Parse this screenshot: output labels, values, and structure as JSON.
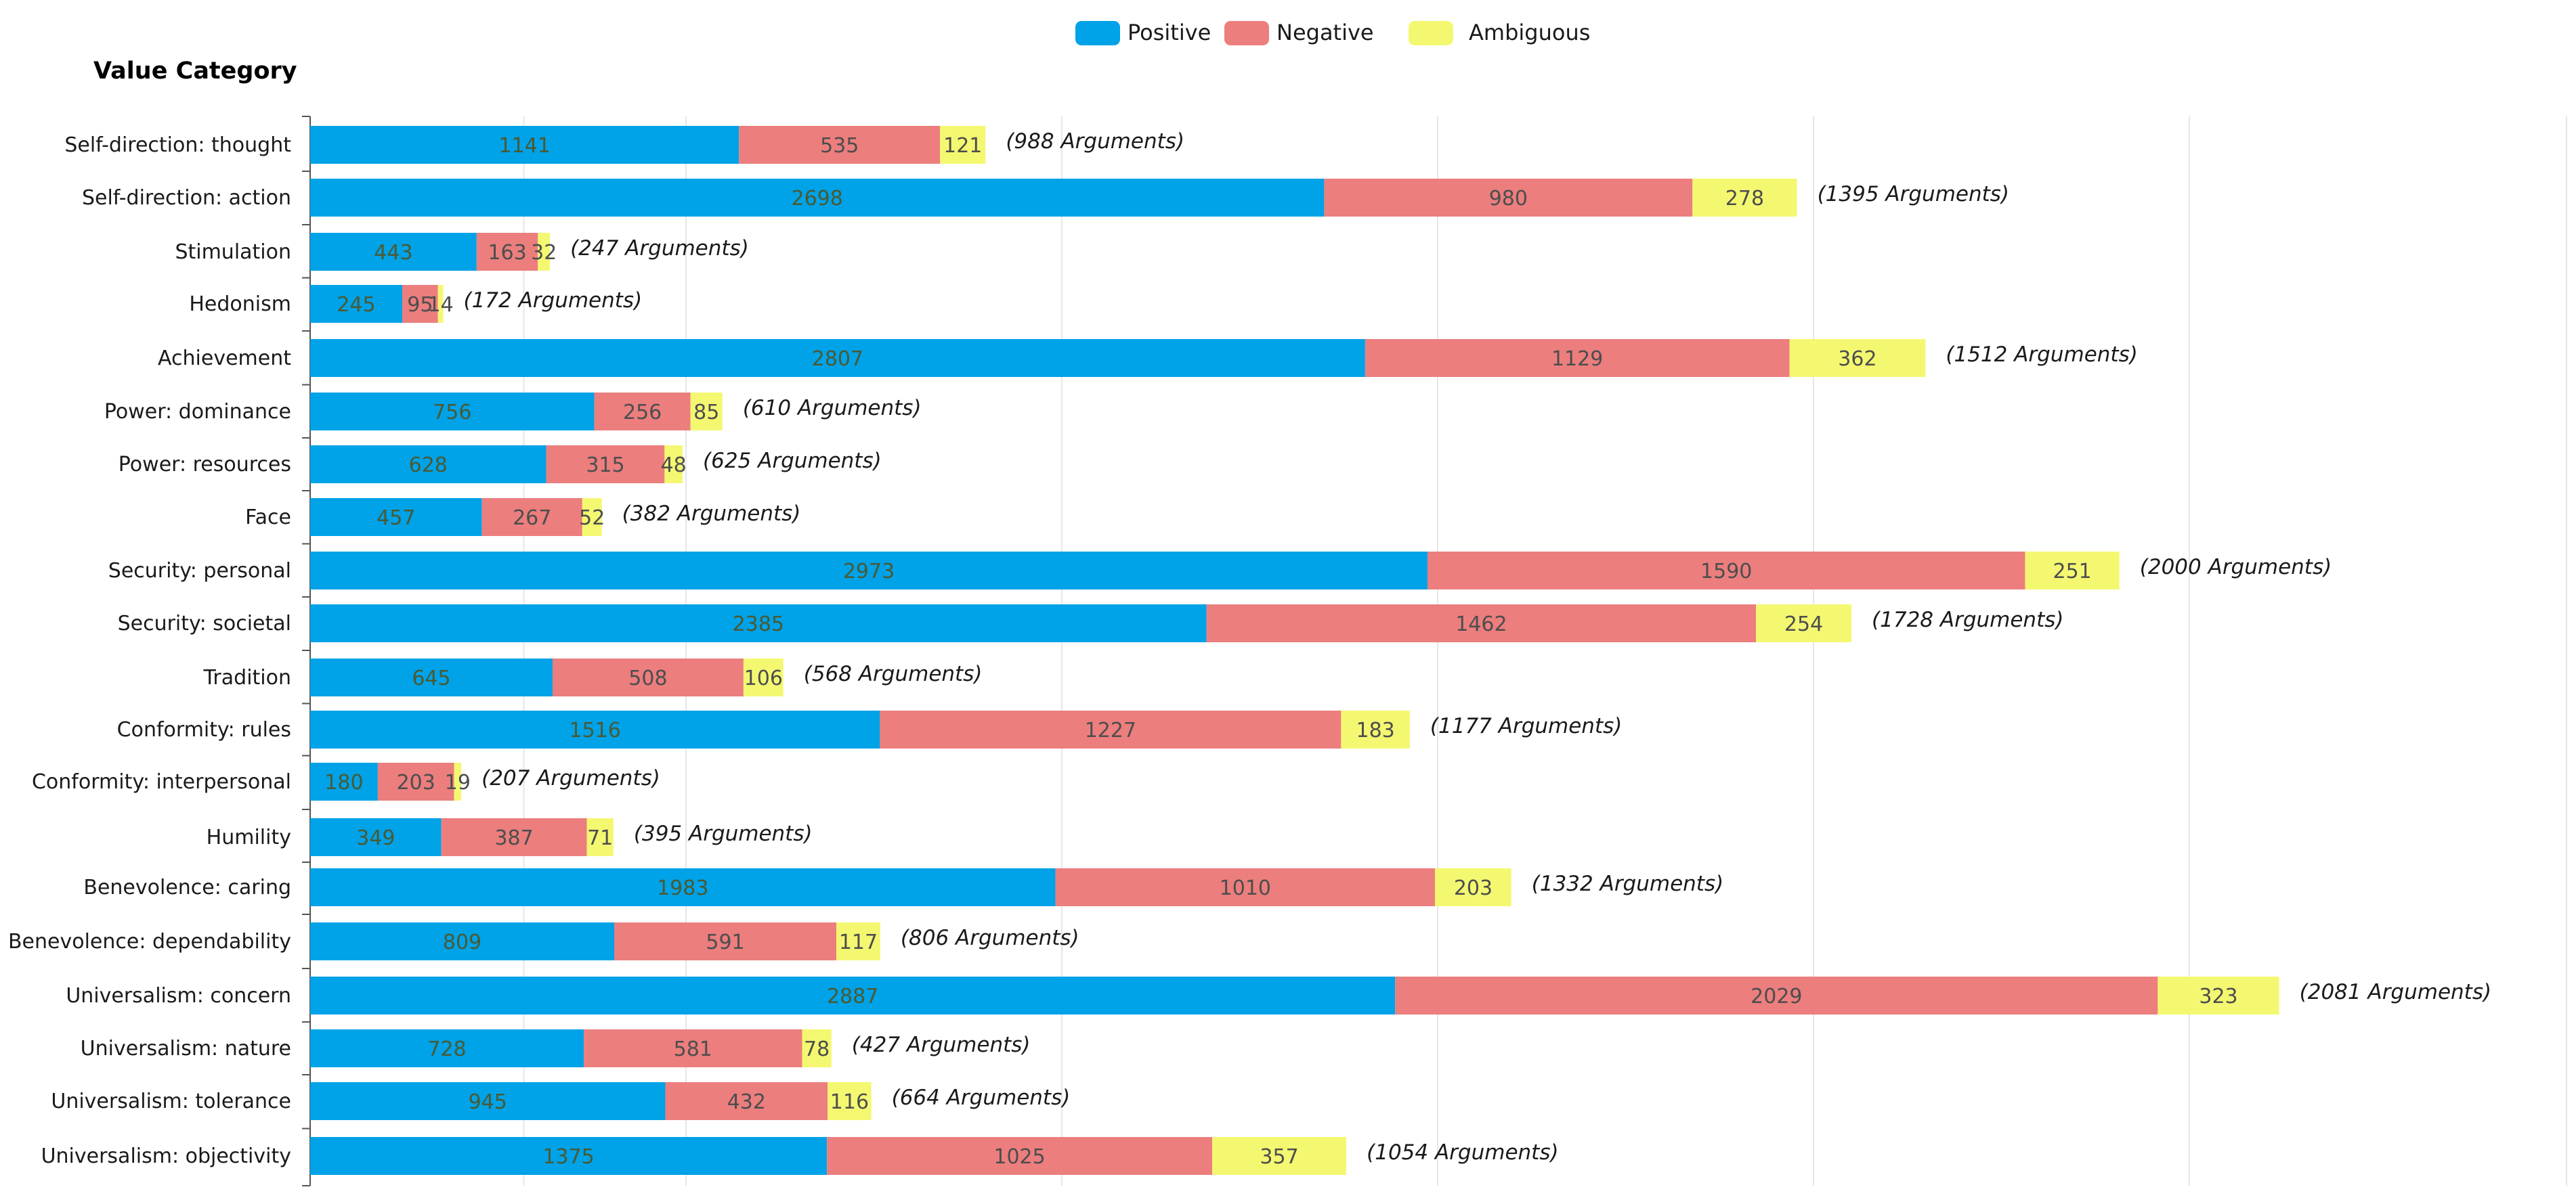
{
  "chart_data": {
    "type": "bar",
    "orientation": "horizontal",
    "stacked": true,
    "title": "Value Category",
    "xlabel": "",
    "ylabel": "Value Category",
    "xlim": [
      0,
      5850
    ],
    "grid": true,
    "legend_position": "top-center",
    "categories": [
      "Self-direction: thought",
      "Self-direction: action",
      "Stimulation",
      "Hedonism",
      "Achievement",
      "Power: dominance",
      "Power: resources",
      "Face",
      "Security: personal",
      "Security: societal",
      "Tradition",
      "Conformity: rules",
      "Conformity: interpersonal",
      "Humility",
      "Benevolence: caring",
      "Benevolence: dependability",
      "Universalism: concern",
      "Universalism: nature",
      "Universalism: tolerance",
      "Universalism: objectivity"
    ],
    "series": [
      {
        "name": "Positive",
        "color": "#00a2e8",
        "text_color": "#4a5a33",
        "values": [
          1141,
          2698,
          443,
          245,
          2807,
          756,
          628,
          457,
          2973,
          2385,
          645,
          1516,
          180,
          349,
          1983,
          809,
          2887,
          728,
          945,
          1375
        ]
      },
      {
        "name": "Negative",
        "color": "#ec7e7e",
        "text_color": "#4d4d4d",
        "values": [
          535,
          980,
          163,
          95,
          1129,
          256,
          315,
          267,
          1590,
          1462,
          508,
          1227,
          203,
          387,
          1010,
          591,
          2029,
          581,
          432,
          1025
        ]
      },
      {
        "name": "Ambiguous",
        "color": "#f4f871",
        "text_color": "#4d4d4d",
        "values": [
          121,
          278,
          32,
          14,
          362,
          85,
          48,
          52,
          251,
          254,
          106,
          183,
          19,
          71,
          203,
          117,
          323,
          78,
          116,
          357
        ]
      }
    ],
    "annotations": [
      "(988 Arguments)",
      "(1395 Arguments)",
      "(247 Arguments)",
      "(172 Arguments)",
      "(1512 Arguments)",
      "(610 Arguments)",
      "(625 Arguments)",
      "(382 Arguments)",
      "(2000 Arguments)",
      "(1728 Arguments)",
      "(568 Arguments)",
      "(1177 Arguments)",
      "(207 Arguments)",
      "(395 Arguments)",
      "(1332 Arguments)",
      "(806 Arguments)",
      "(2081 Arguments)",
      "(427 Arguments)",
      "(664 Arguments)",
      "(1054 Arguments)"
    ]
  }
}
